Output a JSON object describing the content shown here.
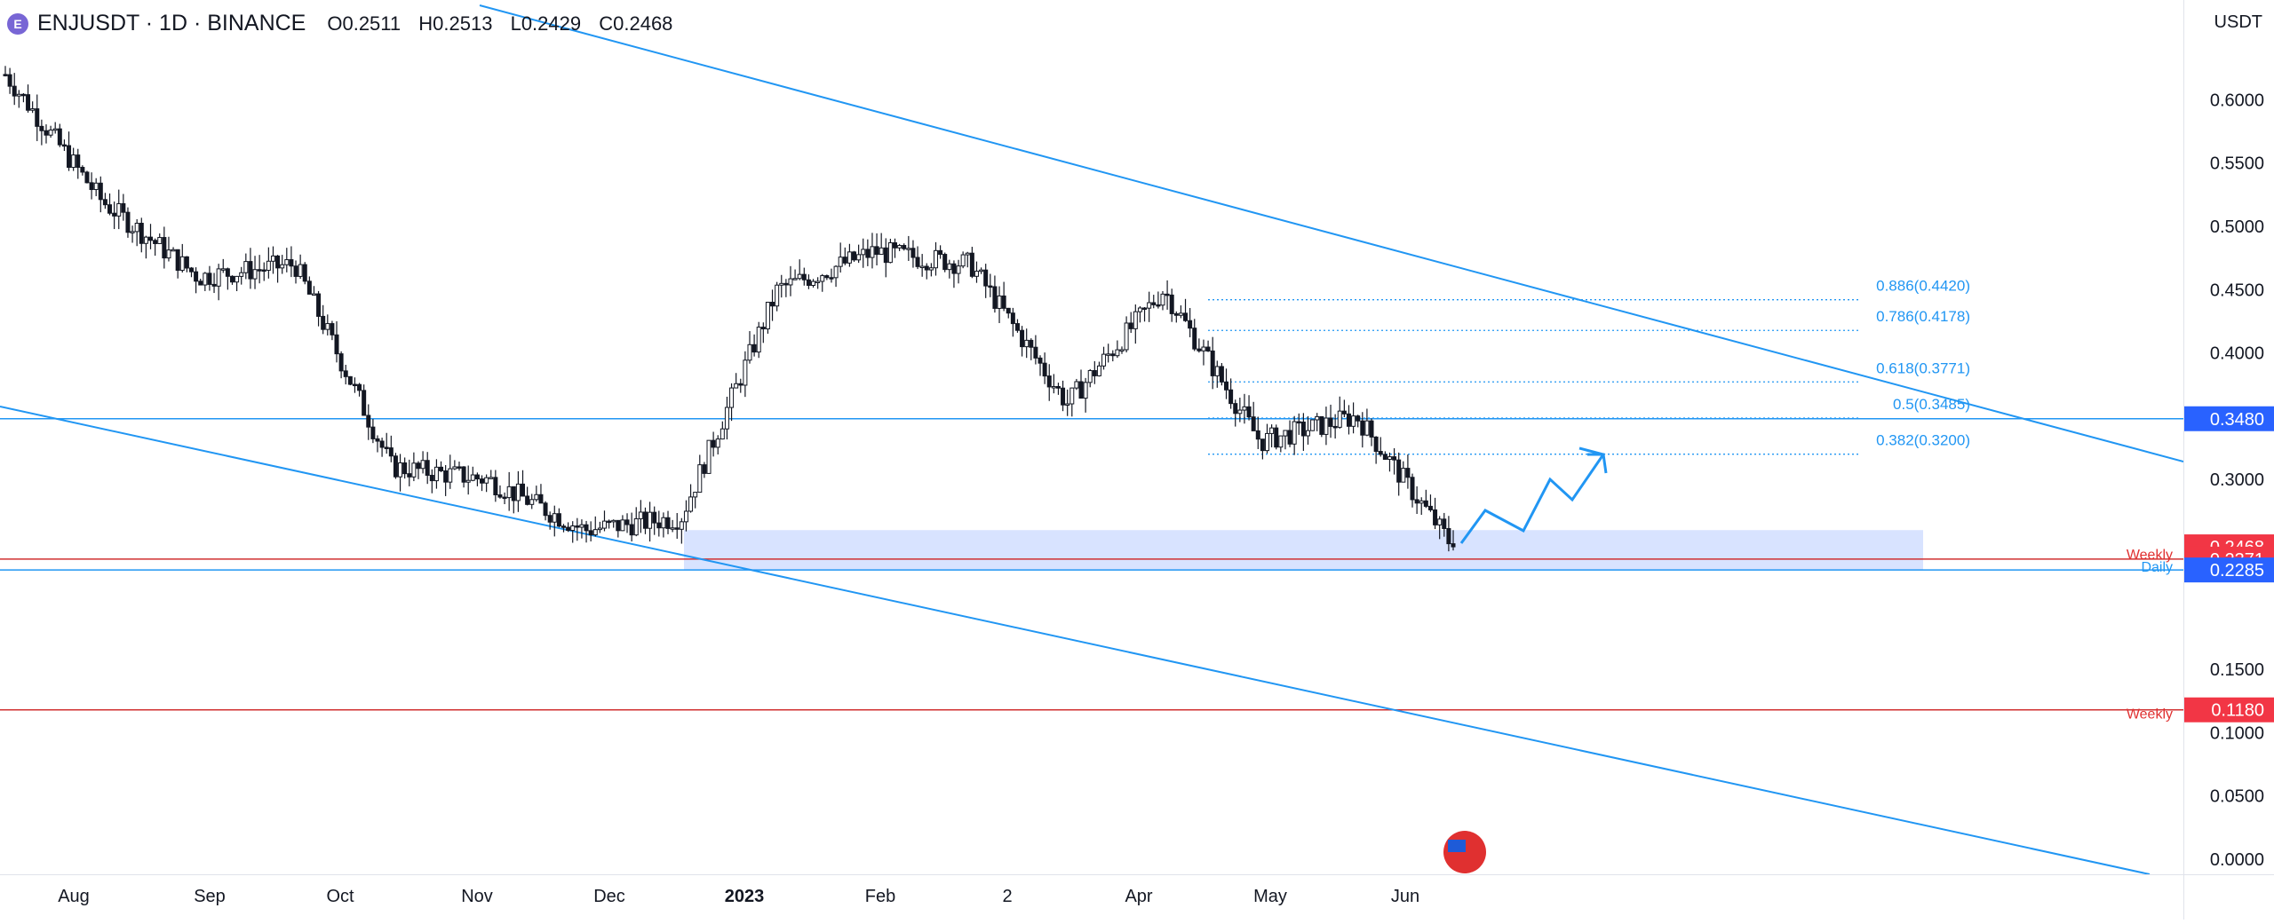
{
  "header": {
    "symbol": "ENJUSDT · 1D · BINANCE",
    "open": "O0.2511",
    "high": "H0.2513",
    "low": "L0.2429",
    "close": "C0.2468"
  },
  "price_scale": {
    "currency": "USDT",
    "ticks": [
      "0.6000",
      "0.5500",
      "0.5000",
      "0.4500",
      "0.4000",
      "0.3000",
      "0.1500",
      "0.1000",
      "0.0500",
      "0.0000"
    ]
  },
  "time_scale": {
    "ticks": [
      "Aug",
      "Sep",
      "Oct",
      "Nov",
      "Dec",
      "2023",
      "Feb",
      "2",
      "Apr",
      "May",
      "Jun"
    ]
  },
  "price_labels": [
    {
      "text": "0.3480",
      "price": 0.348,
      "color": "#2962ff"
    },
    {
      "text": "0.2468",
      "price": 0.2468,
      "color": "#f23645"
    },
    {
      "text": "0.2371",
      "price": 0.2371,
      "color": "#f23645"
    },
    {
      "text": "0.2285",
      "price": 0.2285,
      "color": "#2962ff"
    },
    {
      "text": "0.1180",
      "price": 0.118,
      "color": "#f23645"
    }
  ],
  "line_labels": {
    "weekly_1": "Weekly",
    "daily": "Daily",
    "weekly_2": "Weekly"
  },
  "fib_levels": [
    {
      "label": "0.886(0.4420)",
      "price": 0.442
    },
    {
      "label": "0.786(0.4178)",
      "price": 0.4178
    },
    {
      "label": "0.618(0.3771)",
      "price": 0.3771
    },
    {
      "label": "0.5(0.3485)",
      "price": 0.3485
    },
    {
      "label": "0.382(0.3200)",
      "price": 0.32
    }
  ],
  "chart_data": {
    "type": "candlestick",
    "title": "ENJUSDT · 1D · BINANCE",
    "ylim": [
      0,
      0.68
    ],
    "x_ticks": [
      "Aug",
      "Sep",
      "Oct",
      "Nov",
      "Dec",
      "2023",
      "Feb",
      "2",
      "Apr",
      "May",
      "Jun"
    ],
    "approx_close_path": [
      {
        "date": "Aug",
        "close": 0.62
      },
      {
        "date": "Sep",
        "close": 0.52
      },
      {
        "date": "Oct",
        "close": 0.46
      },
      {
        "date": "Nov",
        "close": 0.47
      },
      {
        "date": "Nov",
        "close": 0.31
      },
      {
        "date": "Dec",
        "close": 0.3
      },
      {
        "date": "Dec",
        "close": 0.26
      },
      {
        "date": "2023",
        "close": 0.27
      },
      {
        "date": "2023",
        "close": 0.45
      },
      {
        "date": "Feb",
        "close": 0.48
      },
      {
        "date": "2",
        "close": 0.47
      },
      {
        "date": "2",
        "close": 0.36
      },
      {
        "date": "Apr",
        "close": 0.45
      },
      {
        "date": "May",
        "close": 0.33
      },
      {
        "date": "Jun",
        "close": 0.35
      },
      {
        "date": "Jun",
        "close": 0.2468
      }
    ],
    "last_close": 0.2468,
    "horizontal_levels": [
      {
        "price": 0.348,
        "color": "#2962ff"
      },
      {
        "price": 0.2371,
        "label": "Weekly",
        "color": "#f23645"
      },
      {
        "price": 0.2285,
        "label": "Daily",
        "color": "#2962ff"
      },
      {
        "price": 0.118,
        "label": "Weekly",
        "color": "#f23645"
      }
    ],
    "support_zone": [
      0.2285,
      0.26
    ],
    "colors": {
      "up": "#ffffff",
      "down": "#131722",
      "trendline": "#2196f3",
      "level_red": "#e03030"
    }
  }
}
